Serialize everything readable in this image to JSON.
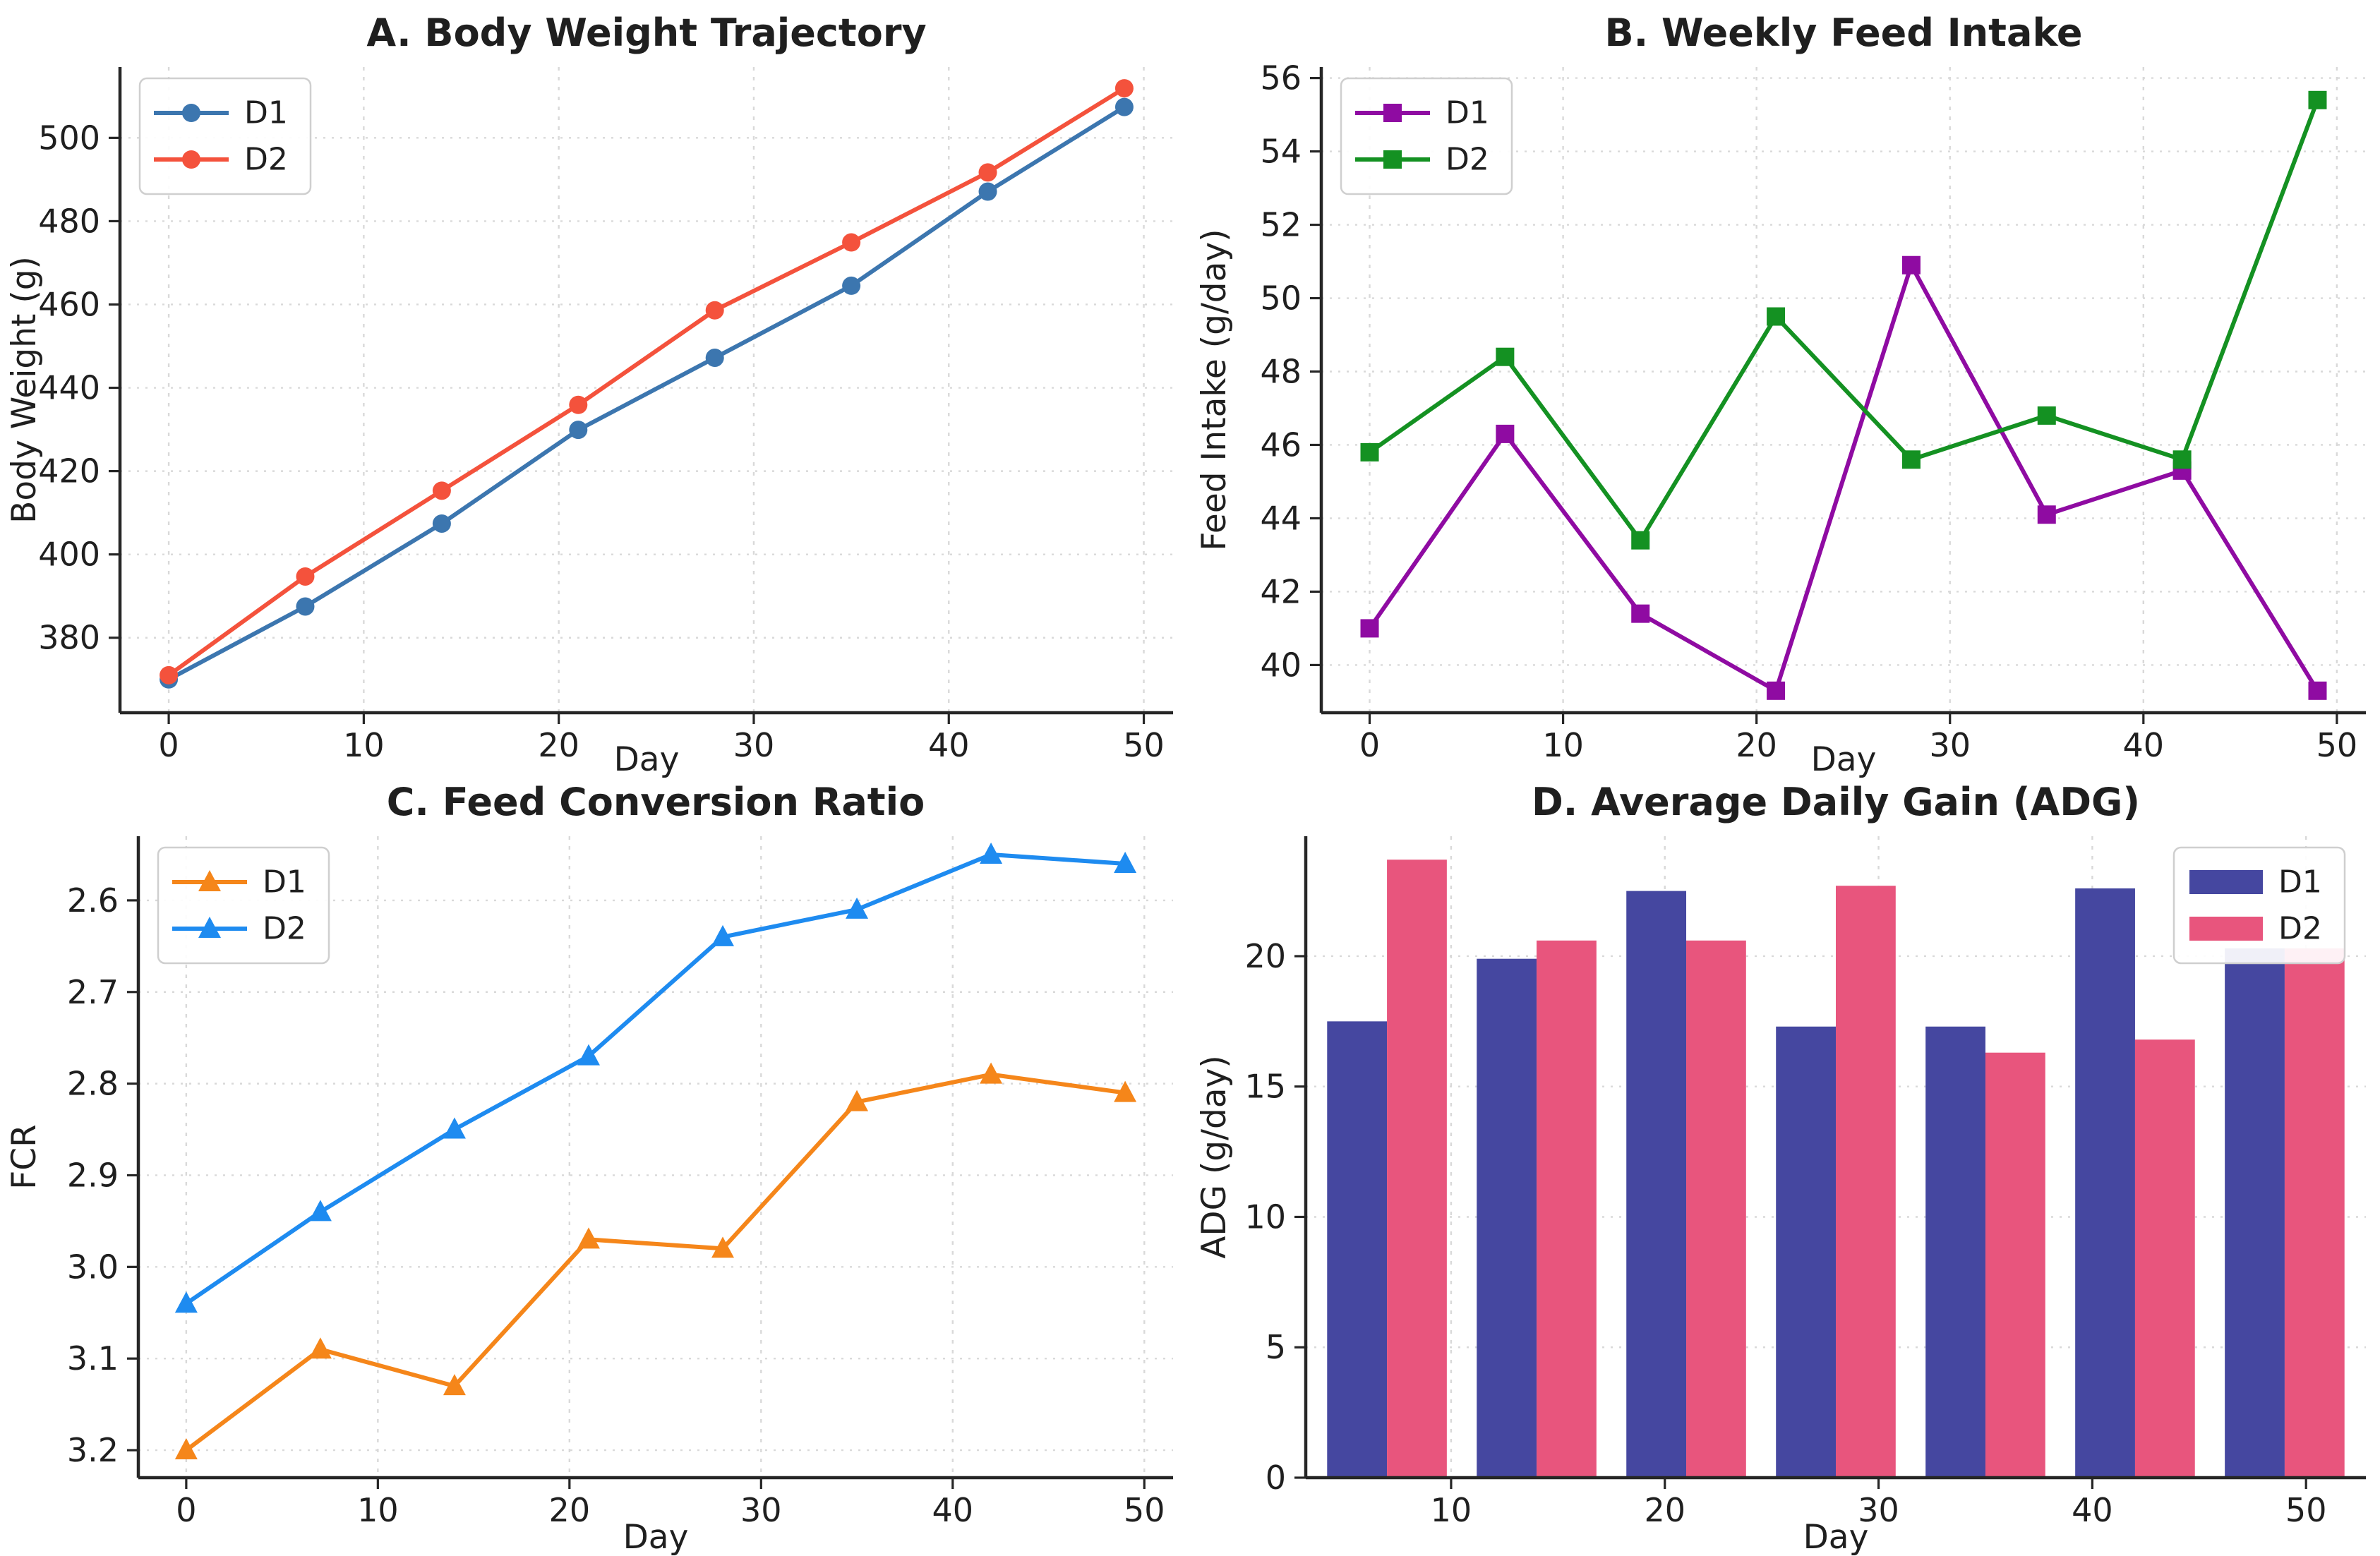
{
  "figure": {
    "background": "#ffffff",
    "text_color": "#1f1f1f",
    "spine_color": "#262626",
    "grid_color": "#d9d9d9",
    "legend_border_color": "#cfcfcf"
  },
  "chart_data": [
    {
      "id": "panel-a",
      "type": "line",
      "title": "A. Body Weight Trajectory",
      "xlabel": "Day",
      "ylabel": "Body Weight (g)",
      "x": [
        0,
        7,
        14,
        21,
        28,
        35,
        42,
        49
      ],
      "xlim": [
        -2.5,
        51.5
      ],
      "xticks": [
        0,
        10,
        20,
        30,
        40,
        50
      ],
      "ylim": [
        362,
        517
      ],
      "yticks": [
        380,
        400,
        420,
        440,
        460,
        480,
        500
      ],
      "invert_y": false,
      "grid": true,
      "legend_position": "top-left",
      "series": [
        {
          "name": "D1",
          "color": "#3c76af",
          "marker": "circle",
          "values": [
            370.0,
            387.5,
            407.4,
            429.9,
            447.2,
            464.5,
            487.1,
            507.4
          ]
        },
        {
          "name": "D2",
          "color": "#f4523c",
          "marker": "circle",
          "values": [
            371.0,
            394.7,
            415.3,
            435.9,
            458.6,
            474.9,
            491.7,
            511.9
          ]
        }
      ]
    },
    {
      "id": "panel-b",
      "type": "line",
      "title": "B. Weekly Feed Intake",
      "xlabel": "Day",
      "ylabel": "Feed Intake (g/day)",
      "x": [
        0,
        7,
        14,
        21,
        28,
        35,
        42,
        49
      ],
      "xlim": [
        -2.5,
        51.5
      ],
      "xticks": [
        0,
        10,
        20,
        30,
        40,
        50
      ],
      "ylim": [
        38.7,
        56.3
      ],
      "yticks": [
        40,
        42,
        44,
        46,
        48,
        50,
        52,
        54,
        56
      ],
      "invert_y": false,
      "grid": true,
      "legend_position": "top-left",
      "series": [
        {
          "name": "D1",
          "color": "#8f0ba2",
          "marker": "square",
          "values": [
            41.0,
            46.3,
            41.4,
            39.3,
            50.9,
            44.1,
            45.3,
            39.3
          ]
        },
        {
          "name": "D2",
          "color": "#149122",
          "marker": "square",
          "values": [
            45.8,
            48.4,
            43.4,
            49.5,
            45.6,
            46.8,
            45.6,
            55.4
          ]
        }
      ]
    },
    {
      "id": "panel-c",
      "type": "line",
      "title": "C. Feed Conversion Ratio",
      "xlabel": "Day",
      "ylabel": "FCR",
      "x": [
        0,
        7,
        14,
        21,
        28,
        35,
        42,
        49
      ],
      "xlim": [
        -2.5,
        51.5
      ],
      "xticks": [
        0,
        10,
        20,
        30,
        40,
        50
      ],
      "ylim": [
        2.53,
        3.23
      ],
      "yticks": [
        2.6,
        2.7,
        2.8,
        2.9,
        3.0,
        3.1,
        3.2
      ],
      "ytick_labels": [
        "2.6",
        "2.7",
        "2.8",
        "2.9",
        "3.0",
        "3.1",
        "3.2"
      ],
      "invert_y": true,
      "grid": true,
      "legend_position": "top-left",
      "series": [
        {
          "name": "D1",
          "color": "#f5861a",
          "marker": "triangle",
          "values": [
            3.2,
            3.09,
            3.13,
            2.97,
            2.98,
            2.82,
            2.79,
            2.81
          ]
        },
        {
          "name": "D2",
          "color": "#1e8bf0",
          "marker": "triangle",
          "values": [
            3.04,
            2.94,
            2.85,
            2.77,
            2.64,
            2.61,
            2.55,
            2.56
          ]
        }
      ]
    },
    {
      "id": "panel-d",
      "type": "bar",
      "title": "D. Average Daily Gain (ADG)",
      "xlabel": "Day",
      "ylabel": "ADG (g/day)",
      "categories": [
        7,
        14,
        21,
        28,
        35,
        42,
        49
      ],
      "bar_width": 2.8,
      "xlim": [
        3.2,
        52.8
      ],
      "xticks": [
        10,
        20,
        30,
        40,
        50
      ],
      "ylim": [
        0,
        24.6
      ],
      "yticks": [
        0,
        5,
        10,
        15,
        20
      ],
      "invert_y": false,
      "grid": true,
      "legend_position": "top-right",
      "series": [
        {
          "name": "D1",
          "color": "#4547a0",
          "values": [
            17.5,
            19.9,
            22.5,
            17.3,
            17.3,
            22.6,
            20.3
          ]
        },
        {
          "name": "D2",
          "color": "#e8557d",
          "values": [
            23.7,
            20.6,
            20.6,
            22.7,
            16.3,
            16.8,
            20.3
          ]
        }
      ]
    }
  ]
}
